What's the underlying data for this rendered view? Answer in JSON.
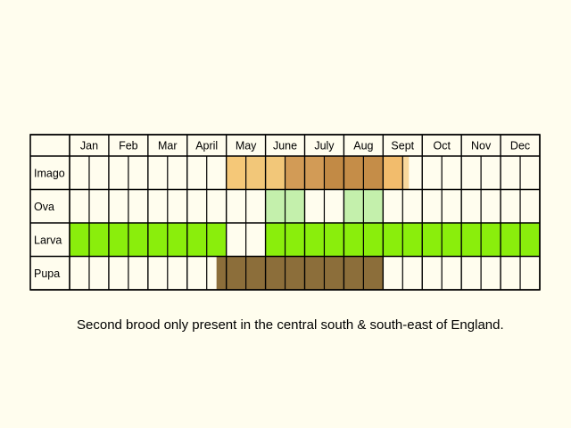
{
  "months": [
    "Jan",
    "Feb",
    "Mar",
    "Apr",
    "May",
    "Jun",
    "Jul",
    "Aug",
    "Sep",
    "Oct",
    "Nov",
    "Dec"
  ],
  "month_labels": [
    "Jan",
    "Feb",
    "Mar",
    "April",
    "May",
    "June",
    "July",
    "Aug",
    "Sept",
    "Oct",
    "Nov",
    "Dec"
  ],
  "stages": [
    {
      "name": "Imago",
      "periods": [
        {
          "start": "May",
          "fraction_start": 0.0,
          "end": "May",
          "fraction_end": 0.5,
          "color": "#F5C878"
        },
        {
          "start": "May",
          "fraction_start": 0.5,
          "end": "Jun",
          "fraction_end": 0.5,
          "color": "#F2C779"
        },
        {
          "start": "Jun",
          "fraction_start": 0.5,
          "end": "Jul",
          "fraction_end": 0.5,
          "color": "#D29B56"
        },
        {
          "start": "Jul",
          "fraction_start": 0.5,
          "end": "Jul",
          "fraction_end": 1.0,
          "color": "#C28A45"
        },
        {
          "start": "Aug",
          "fraction_start": 0.0,
          "end": "Aug",
          "fraction_end": 1.0,
          "color": "#C58D48"
        },
        {
          "start": "Sep",
          "fraction_start": 0.0,
          "end": "Sep",
          "fraction_end": 0.5,
          "color": "#F2BC6C"
        },
        {
          "start": "Sep",
          "fraction_start": 0.5,
          "end": "Sep",
          "fraction_end": 0.66,
          "color": "#F8D89C"
        }
      ]
    },
    {
      "name": "Ova",
      "periods": [
        {
          "start": "Jun",
          "fraction_start": 0.0,
          "end": "Jun",
          "fraction_end": 1.0,
          "color": "#C4F0AC"
        },
        {
          "start": "Aug",
          "fraction_start": 0.0,
          "end": "Aug",
          "fraction_end": 1.0,
          "color": "#C4F0AC"
        }
      ]
    },
    {
      "name": "Larva",
      "periods": [
        {
          "start": "Jan",
          "fraction_start": 0.0,
          "end": "Apr",
          "fraction_end": 1.0,
          "color": "#8AEE0C"
        },
        {
          "start": "Jun",
          "fraction_start": 0.0,
          "end": "Dec",
          "fraction_end": 1.0,
          "color": "#8AEE0C"
        }
      ]
    },
    {
      "name": "Pupa",
      "periods": [
        {
          "start": "Apr",
          "fraction_start": 0.75,
          "end": "Aug",
          "fraction_end": 1.0,
          "color": "#8C6E3A"
        }
      ]
    }
  ],
  "note": "Second brood only present in the central south & south-east of England.",
  "colors": {
    "background": "#FFFDEE",
    "cell": "#FFFDEE",
    "grid": "#000000"
  }
}
